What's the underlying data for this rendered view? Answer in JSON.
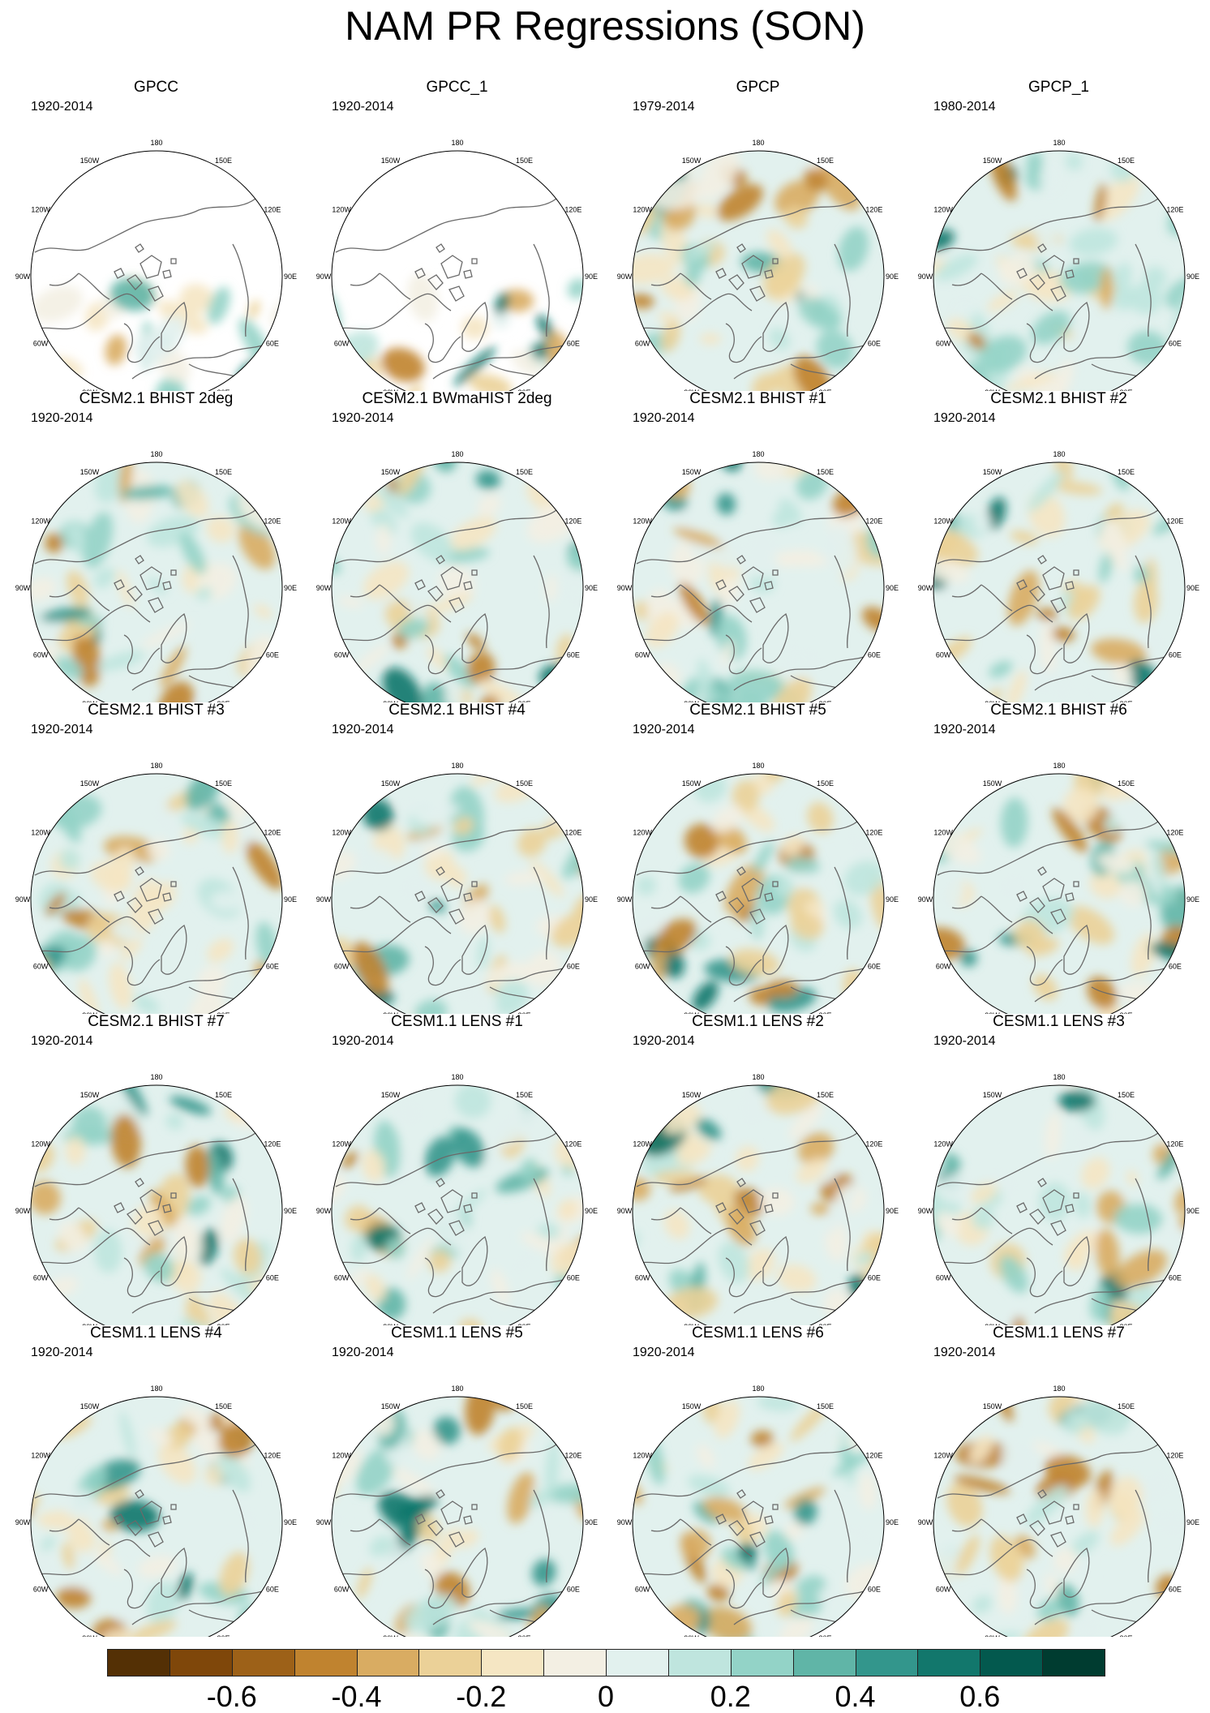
{
  "title": "NAM PR Regressions (SON)",
  "panels": [
    {
      "title": "GPCC",
      "period": "1920-2014"
    },
    {
      "title": "GPCC_1",
      "period": "1920-2014"
    },
    {
      "title": "GPCP",
      "period": "1979-2014"
    },
    {
      "title": "GPCP_1",
      "period": "1980-2014"
    },
    {
      "title": "CESM2.1 BHIST 2deg",
      "period": "1920-2014"
    },
    {
      "title": "CESM2.1 BWmaHIST 2deg",
      "period": "1920-2014"
    },
    {
      "title": "CESM2.1 BHIST #1",
      "period": "1920-2014"
    },
    {
      "title": "CESM2.1 BHIST #2",
      "period": "1920-2014"
    },
    {
      "title": "CESM2.1 BHIST #3",
      "period": "1920-2014"
    },
    {
      "title": "CESM2.1 BHIST #4",
      "period": "1920-2014"
    },
    {
      "title": "CESM2.1 BHIST #5",
      "period": "1920-2014"
    },
    {
      "title": "CESM2.1 BHIST #6",
      "period": "1920-2014"
    },
    {
      "title": "CESM2.1 BHIST #7",
      "period": "1920-2014"
    },
    {
      "title": "CESM1.1 LENS #1",
      "period": "1920-2014"
    },
    {
      "title": "CESM1.1 LENS #2",
      "period": "1920-2014"
    },
    {
      "title": "CESM1.1 LENS #3",
      "period": "1920-2014"
    },
    {
      "title": "CESM1.1 LENS #4",
      "period": "1920-2014"
    },
    {
      "title": "CESM1.1 LENS #5",
      "period": "1920-2014"
    },
    {
      "title": "CESM1.1 LENS #6",
      "period": "1920-2014"
    },
    {
      "title": "CESM1.1 LENS #7",
      "period": "1920-2014"
    }
  ],
  "longitude_labels": [
    "180",
    "150E",
    "120E",
    "90E",
    "60E",
    "30E",
    "0",
    "30W",
    "60W",
    "90W",
    "120W",
    "150W"
  ],
  "colorbar": {
    "colors": [
      "#543005",
      "#7f470a",
      "#9d6118",
      "#c0832f",
      "#d9ac62",
      "#ebd198",
      "#f5e6c3",
      "#f3efe3",
      "#e2f1ee",
      "#bfe5de",
      "#93d3c7",
      "#60b5a7",
      "#33968c",
      "#12776c",
      "#03594e",
      "#003c30"
    ],
    "tick_labels": [
      {
        "label": "-0.6",
        "value": -0.6
      },
      {
        "label": "-0.4",
        "value": -0.4
      },
      {
        "label": "-0.2",
        "value": -0.2
      },
      {
        "label": "0",
        "value": 0
      },
      {
        "label": "0.2",
        "value": 0.2
      },
      {
        "label": "0.4",
        "value": 0.4
      },
      {
        "label": "0.6",
        "value": 0.6
      }
    ],
    "min": -0.8,
    "max": 0.8
  },
  "missing_data_panels": [
    0,
    1
  ]
}
